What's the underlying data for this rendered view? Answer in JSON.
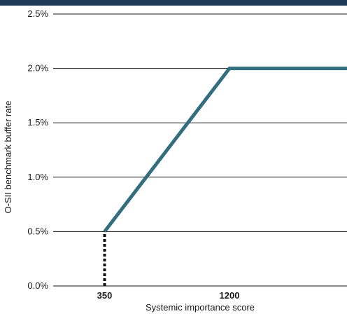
{
  "colors": {
    "band": "#1f3a57",
    "series": "#336d80",
    "grid": "#1a1a1a",
    "dotted": "#111111"
  },
  "chart_data": {
    "type": "line",
    "title": "",
    "xlabel": "Systemic importance score",
    "ylabel": "O-SII benchmark buffer rate",
    "xlim": [
      0,
      2000
    ],
    "ylim": [
      0,
      2.5
    ],
    "x_ticks": [
      350,
      1200
    ],
    "x_tick_labels": [
      "350",
      "1200"
    ],
    "y_ticks": [
      0,
      0.5,
      1.0,
      1.5,
      2.0,
      2.5
    ],
    "y_tick_labels": [
      "0.0%",
      "0.5%",
      "1.0%",
      "1.5%",
      "2.0%",
      "2.5%"
    ],
    "grid": true,
    "series": [
      {
        "x": [
          350,
          1200,
          2000
        ],
        "y": [
          0.5,
          2.0,
          2.0
        ]
      }
    ],
    "threshold": {
      "x": 350,
      "y_from": 0,
      "y_to": 0.5,
      "style": "dotted"
    }
  }
}
